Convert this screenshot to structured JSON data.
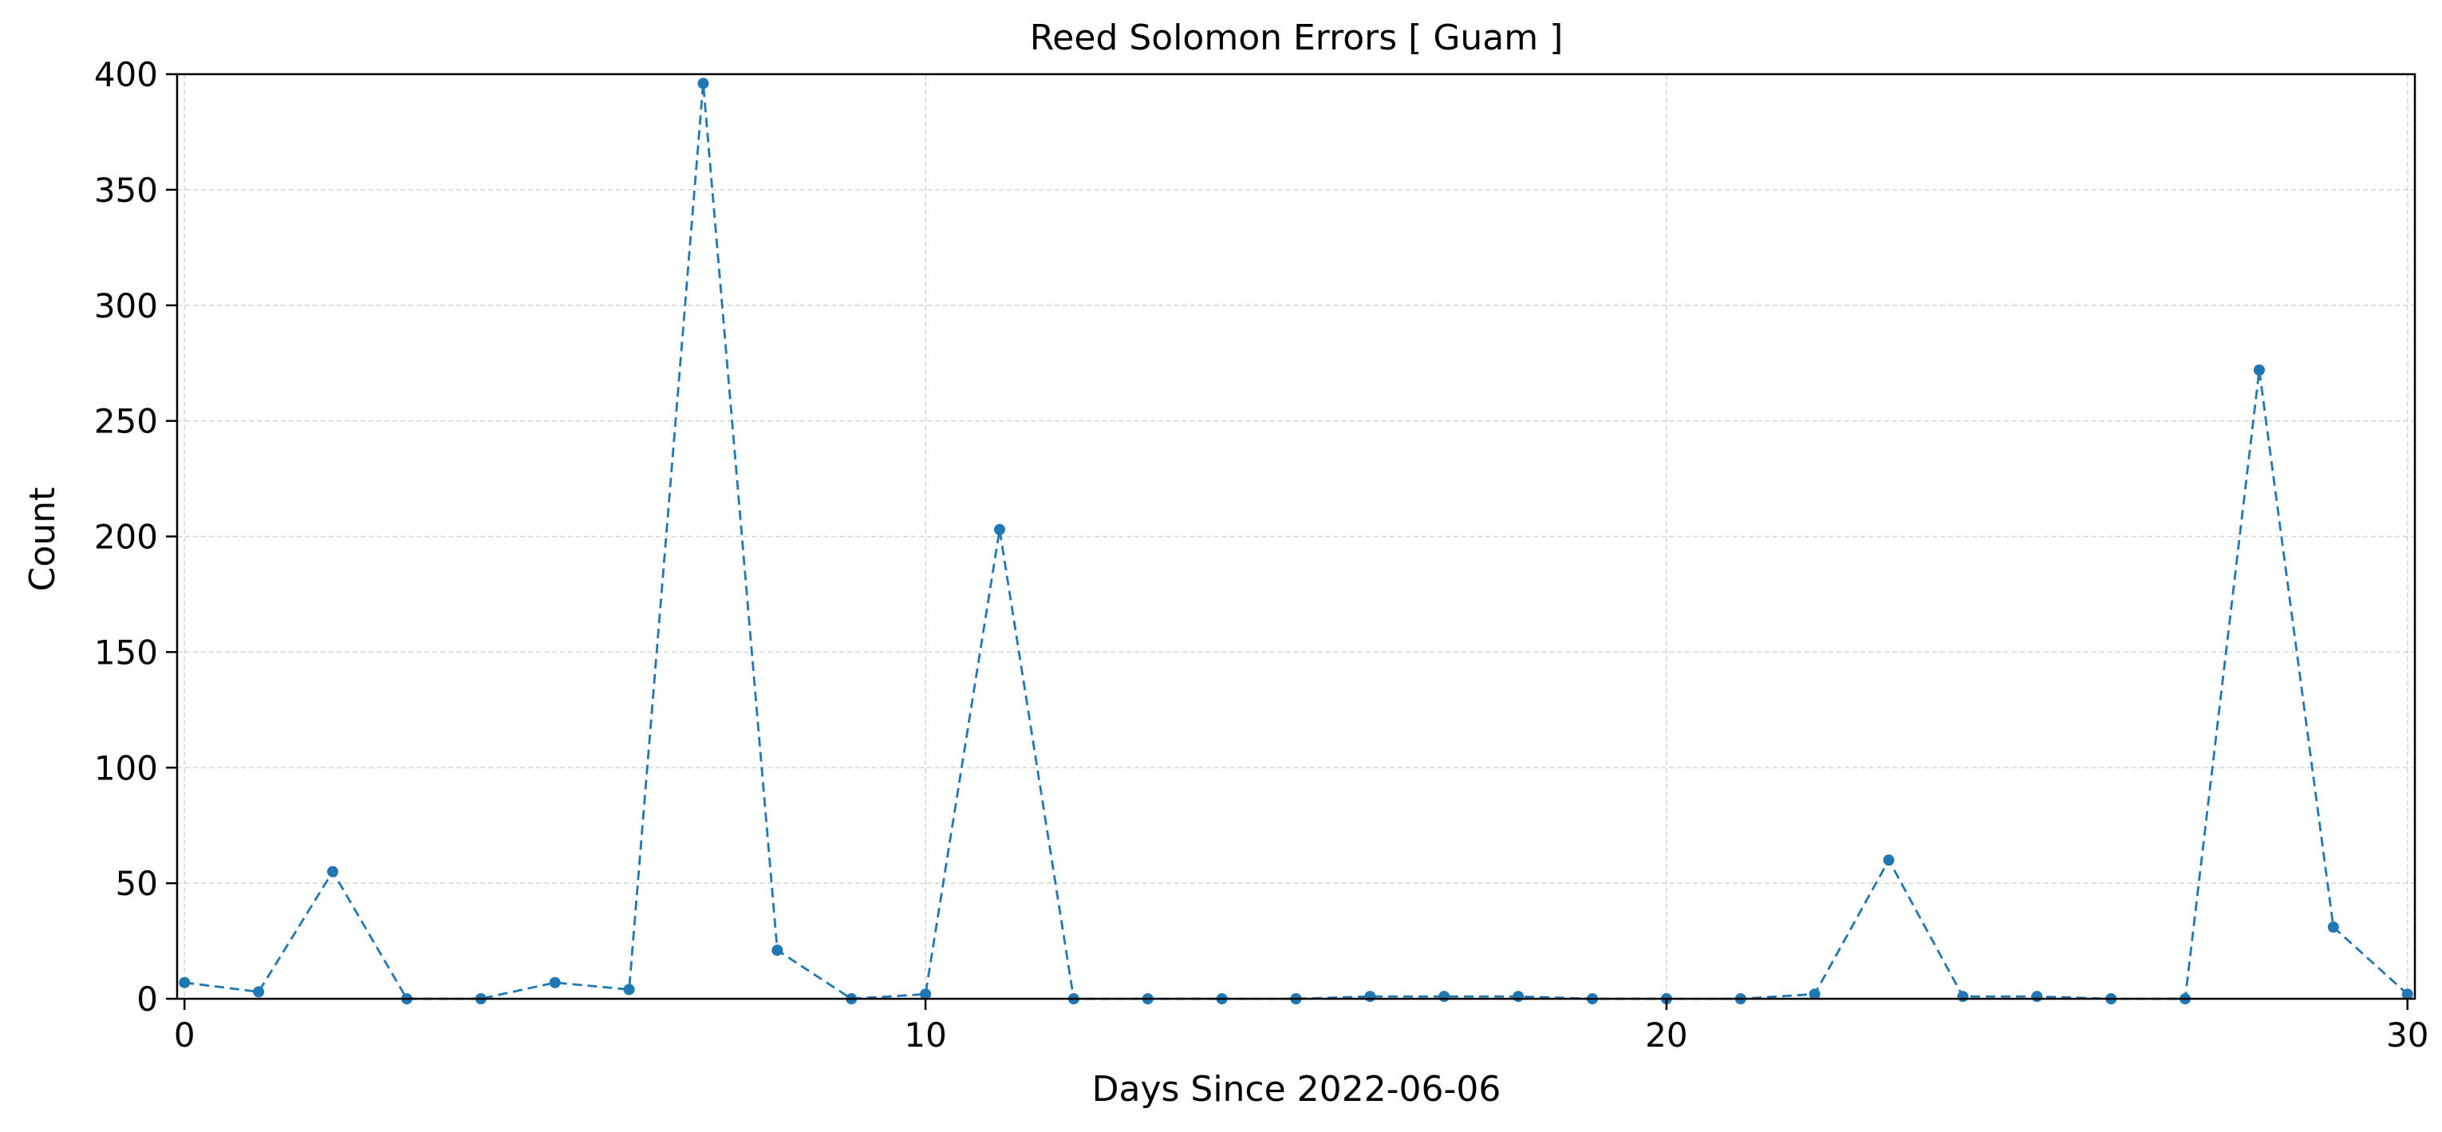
{
  "chart_data": {
    "type": "line",
    "title": "Reed Solomon Errors [ Guam ]",
    "xlabel": "Days Since 2022-06-06",
    "ylabel": "Count",
    "xlim": [
      -0.1,
      30.1
    ],
    "ylim": [
      0,
      400
    ],
    "x_ticks": [
      0,
      10,
      20,
      30
    ],
    "y_ticks": [
      0,
      50,
      100,
      150,
      200,
      250,
      300,
      350,
      400
    ],
    "grid": true,
    "line_style": "dashed",
    "marker": "circle",
    "color": "#1f77b4",
    "x": [
      0,
      1,
      2,
      3,
      4,
      5,
      6,
      7,
      8,
      9,
      10,
      11,
      12,
      13,
      14,
      15,
      16,
      17,
      18,
      19,
      20,
      21,
      22,
      23,
      24,
      25,
      26,
      27,
      28,
      29,
      30
    ],
    "values": [
      7,
      3,
      55,
      0,
      0,
      7,
      4,
      396,
      21,
      0,
      2,
      203,
      0,
      0,
      0,
      0,
      1,
      1,
      1,
      0,
      0,
      0,
      2,
      60,
      1,
      1,
      0,
      0,
      272,
      31,
      2
    ]
  }
}
